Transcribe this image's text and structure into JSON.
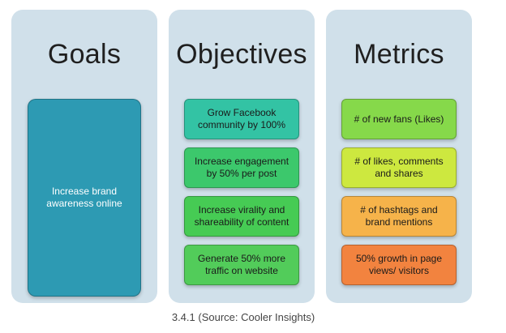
{
  "columns": [
    {
      "title": "Goals",
      "items": [
        {
          "text": "Increase brand awareness online",
          "color": "#2d9ab3"
        }
      ]
    },
    {
      "title": "Objectives",
      "items": [
        {
          "text": "Grow Facebook community by 100%",
          "color": "#33c3a4"
        },
        {
          "text": "Increase engagement by 50% per post",
          "color": "#3cc86c"
        },
        {
          "text": "Increase virality and shareability of content",
          "color": "#46cb54"
        },
        {
          "text": "Generate 50% more traffic on website",
          "color": "#52cc5a"
        }
      ]
    },
    {
      "title": "Metrics",
      "items": [
        {
          "text": "# of new fans (Likes)",
          "color": "#86d94a"
        },
        {
          "text": "# of likes, comments and shares",
          "color": "#cde83f"
        },
        {
          "text": "# of hashtags and brand mentions",
          "color": "#f6b34a"
        },
        {
          "text": "50% growth in page views/ visitors",
          "color": "#f2833f"
        }
      ]
    }
  ],
  "caption": "3.4.1 (Source: Cooler Insights)"
}
